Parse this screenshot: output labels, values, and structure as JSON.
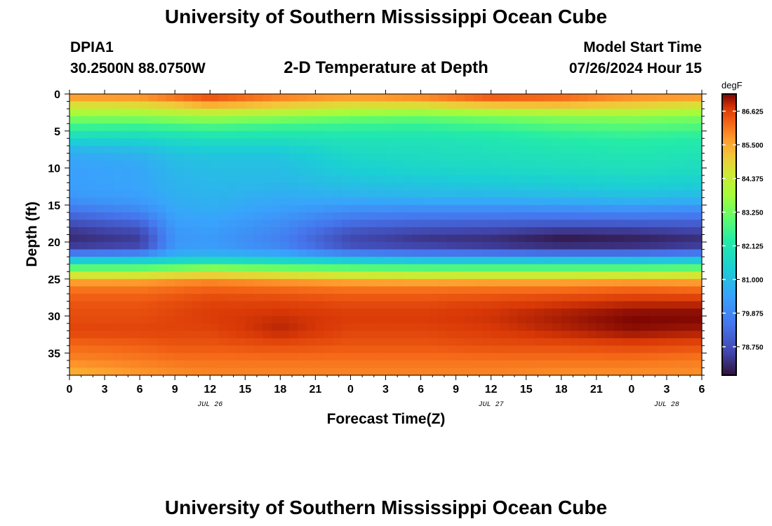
{
  "header": {
    "title": "University of Southern Mississippi Ocean Cube",
    "station_id": "DPIA1",
    "coordinates": "30.2500N  88.0750W",
    "subtitle": "2-D Temperature at Depth",
    "model_start_label": "Model Start Time",
    "model_start_value": "07/26/2024 Hour 15"
  },
  "footer": {
    "title": "University of Southern Mississippi Ocean Cube"
  },
  "chart_data": {
    "type": "heatmap",
    "title": "2-D Temperature at Depth",
    "xlabel": "Forecast Time(Z)",
    "ylabel": "Depth (ft)",
    "x_range_hours": [
      0,
      54
    ],
    "ylim": [
      38,
      0
    ],
    "x_tick_labels": [
      "0",
      "3",
      "6",
      "9",
      "12",
      "15",
      "18",
      "21",
      "0",
      "3",
      "6",
      "9",
      "12",
      "15",
      "18",
      "21",
      "0",
      "3",
      "6"
    ],
    "date_labels": [
      {
        "text": "JUL 26",
        "hour": 12
      },
      {
        "text": "JUL 27",
        "hour": 36
      },
      {
        "text": "JUL 28",
        "hour": 51
      }
    ],
    "y_tick_labels": [
      "0",
      "5",
      "10",
      "15",
      "20",
      "25",
      "30",
      "35"
    ],
    "colorbar": {
      "unit": "degF",
      "range": [
        77.8,
        87.2
      ],
      "ticks": [
        "86.625",
        "85.500",
        "84.375",
        "83.250",
        "82.125",
        "81.000",
        "79.875",
        "78.750"
      ]
    },
    "hours": [
      0,
      6,
      9,
      12,
      18,
      24,
      30,
      36,
      42,
      48,
      54
    ],
    "depths": [
      0,
      1,
      2,
      3,
      4,
      5,
      6,
      8,
      10,
      12,
      14,
      16,
      18,
      19,
      20,
      21,
      22,
      23,
      24,
      25,
      26,
      28,
      30,
      32,
      34,
      36,
      38
    ],
    "temperature_degF": [
      [
        86.0,
        86.1,
        86.5,
        86.8,
        86.2,
        86.0,
        86.2,
        86.7,
        86.5,
        86.1,
        86.0
      ],
      [
        85.2,
        85.3,
        85.6,
        86.0,
        85.6,
        85.2,
        85.4,
        85.9,
        85.8,
        85.4,
        85.2
      ],
      [
        84.2,
        84.3,
        84.6,
        84.9,
        84.6,
        84.3,
        84.2,
        84.5,
        84.7,
        84.6,
        84.2
      ],
      [
        83.6,
        83.6,
        83.8,
        83.9,
        83.7,
        83.3,
        83.2,
        83.4,
        83.6,
        83.6,
        83.4
      ],
      [
        82.8,
        82.8,
        82.9,
        83.0,
        82.8,
        82.7,
        82.6,
        82.8,
        83.0,
        83.1,
        83.0
      ],
      [
        82.3,
        82.2,
        82.3,
        82.4,
        82.3,
        82.3,
        82.3,
        82.4,
        82.6,
        82.7,
        82.6
      ],
      [
        81.6,
        81.6,
        81.8,
        81.9,
        81.9,
        82.0,
        82.0,
        82.1,
        82.3,
        82.4,
        82.3
      ],
      [
        80.6,
        80.8,
        81.1,
        81.2,
        81.2,
        81.7,
        81.8,
        81.9,
        82.0,
        82.1,
        82.0
      ],
      [
        80.4,
        80.5,
        80.9,
        81.0,
        81.0,
        81.4,
        81.6,
        81.7,
        81.8,
        81.9,
        81.8
      ],
      [
        80.4,
        80.5,
        80.8,
        80.9,
        80.9,
        81.1,
        81.2,
        81.3,
        81.4,
        81.5,
        81.4
      ],
      [
        80.2,
        80.4,
        80.7,
        80.8,
        80.6,
        80.7,
        80.8,
        80.8,
        80.9,
        81.0,
        80.9
      ],
      [
        79.4,
        79.8,
        80.5,
        80.6,
        80.3,
        79.9,
        79.8,
        79.8,
        79.8,
        79.9,
        79.8
      ],
      [
        78.5,
        78.9,
        80.3,
        80.4,
        79.9,
        79.1,
        78.9,
        78.8,
        78.7,
        78.7,
        78.8
      ],
      [
        78.2,
        78.5,
        80.2,
        80.3,
        79.8,
        78.7,
        78.4,
        78.3,
        78.0,
        78.1,
        78.3
      ],
      [
        78.2,
        78.4,
        80.2,
        80.3,
        79.7,
        78.6,
        78.3,
        78.2,
        77.9,
        78.0,
        78.2
      ],
      [
        78.6,
        78.8,
        80.3,
        80.4,
        80.0,
        79.0,
        78.8,
        78.6,
        78.5,
        78.5,
        78.7
      ],
      [
        80.5,
        80.6,
        80.9,
        81.0,
        80.9,
        80.5,
        80.3,
        80.3,
        80.2,
        80.2,
        80.4
      ],
      [
        82.1,
        82.1,
        82.3,
        82.5,
        82.3,
        82.1,
        82.0,
        82.0,
        82.0,
        82.0,
        82.1
      ],
      [
        83.8,
        83.8,
        84.1,
        84.3,
        84.0,
        83.8,
        83.7,
        83.7,
        83.7,
        83.7,
        83.8
      ],
      [
        85.4,
        85.4,
        85.6,
        85.7,
        85.5,
        85.3,
        85.2,
        85.3,
        85.3,
        85.4,
        85.4
      ],
      [
        86.0,
        86.0,
        86.1,
        86.2,
        86.1,
        86.0,
        86.0,
        86.0,
        86.0,
        86.1,
        86.0
      ],
      [
        86.4,
        86.4,
        86.5,
        86.6,
        86.6,
        86.5,
        86.5,
        86.6,
        86.7,
        86.8,
        86.8
      ],
      [
        86.5,
        86.5,
        86.6,
        86.7,
        86.8,
        86.7,
        86.7,
        86.8,
        87.0,
        87.2,
        87.2
      ],
      [
        86.6,
        86.6,
        86.6,
        86.6,
        86.9,
        86.6,
        86.6,
        86.7,
        86.9,
        87.1,
        87.0
      ],
      [
        86.2,
        86.3,
        86.4,
        86.4,
        86.5,
        86.4,
        86.4,
        86.5,
        86.5,
        86.6,
        86.5
      ],
      [
        85.9,
        86.0,
        86.1,
        86.1,
        86.1,
        86.1,
        86.1,
        86.1,
        86.1,
        86.1,
        86.0
      ],
      [
        85.3,
        85.7,
        85.8,
        85.9,
        85.9,
        85.9,
        85.9,
        85.9,
        85.8,
        85.8,
        85.8
      ]
    ]
  }
}
